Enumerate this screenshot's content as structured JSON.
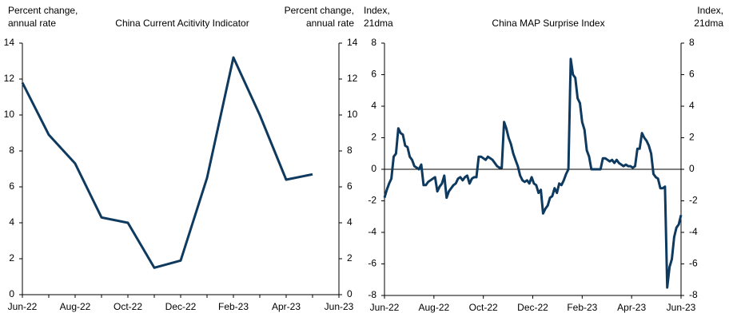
{
  "chart_data": [
    {
      "type": "line",
      "title": "China  Current Acitivity Indicator",
      "ylabel": [
        "Percent change,",
        "annual rate"
      ],
      "y2label": [
        "Percent change,",
        "annual rate"
      ],
      "categories": [
        "Jun-22",
        null,
        "Aug-22",
        null,
        "Oct-22",
        null,
        "Dec-22",
        null,
        "Feb-23",
        null,
        "Apr-23",
        null,
        "Jun-23"
      ],
      "values": [
        11.8,
        8.9,
        7.3,
        4.3,
        4.0,
        1.5,
        1.9,
        6.5,
        13.2,
        10.0,
        6.4,
        6.7,
        null
      ],
      "color": "#0f3a5f",
      "ylim": [
        0,
        14
      ],
      "yticks": [
        0,
        2,
        4,
        6,
        8,
        10,
        12,
        14
      ]
    },
    {
      "type": "line",
      "title": "China  MAP Surprise Index",
      "ylabel": [
        "Index,",
        "21dma"
      ],
      "y2label": [
        "Index,",
        "21dma"
      ],
      "xtick_labels": [
        "Jun-22",
        "Aug-22",
        "Oct-22",
        "Dec-22",
        "Feb-23",
        "Apr-23",
        "Jun-23"
      ],
      "values": [
        -1.8,
        -1.3,
        -0.9,
        -0.6,
        0.8,
        1.0,
        2.6,
        2.3,
        2.2,
        1.5,
        1.4,
        0.8,
        0.6,
        0.2,
        0.1,
        0.0,
        0.3,
        -1.0,
        -1.0,
        -0.8,
        -0.7,
        -0.6,
        -0.5,
        -1.4,
        -1.1,
        -0.9,
        -0.4,
        -1.8,
        -1.4,
        -1.2,
        -1.0,
        -0.9,
        -0.6,
        -0.5,
        -0.7,
        -0.5,
        -0.4,
        -0.9,
        -0.6,
        -0.5,
        -0.5,
        0.8,
        0.8,
        0.7,
        0.6,
        0.8,
        0.7,
        0.6,
        0.4,
        0.2,
        0.1,
        0.1,
        3.0,
        2.6,
        2.0,
        1.6,
        1.0,
        0.6,
        0.2,
        -0.4,
        -0.7,
        -0.8,
        -0.7,
        -0.9,
        -0.5,
        -0.9,
        -1.0,
        -1.5,
        -1.3,
        -2.8,
        -2.5,
        -2.3,
        -1.8,
        -1.7,
        -1.2,
        -1.5,
        -0.9,
        -1.0,
        -0.7,
        -0.3,
        0.0,
        7.0,
        6.0,
        5.8,
        4.5,
        4.2,
        3.0,
        2.5,
        1.2,
        0.8,
        0.0,
        0.0,
        0.0,
        0.0,
        0.0,
        0.7,
        0.7,
        0.6,
        0.5,
        0.6,
        0.4,
        0.6,
        0.4,
        0.3,
        0.2,
        0.3,
        0.2,
        0.2,
        0.1,
        0.2,
        1.3,
        1.3,
        2.3,
        2.0,
        1.8,
        1.5,
        1.0,
        -0.3,
        -0.5,
        -0.6,
        -1.2,
        -1.2,
        -1.1,
        -7.5,
        -6.2,
        -5.7,
        -4.3,
        -3.7,
        -3.5,
        -2.9
      ],
      "color": "#0f3a5f",
      "ylim": [
        -8,
        8
      ],
      "yticks": [
        -8,
        -6,
        -4,
        -2,
        0,
        2,
        4,
        6,
        8
      ],
      "zero_line": true
    }
  ]
}
